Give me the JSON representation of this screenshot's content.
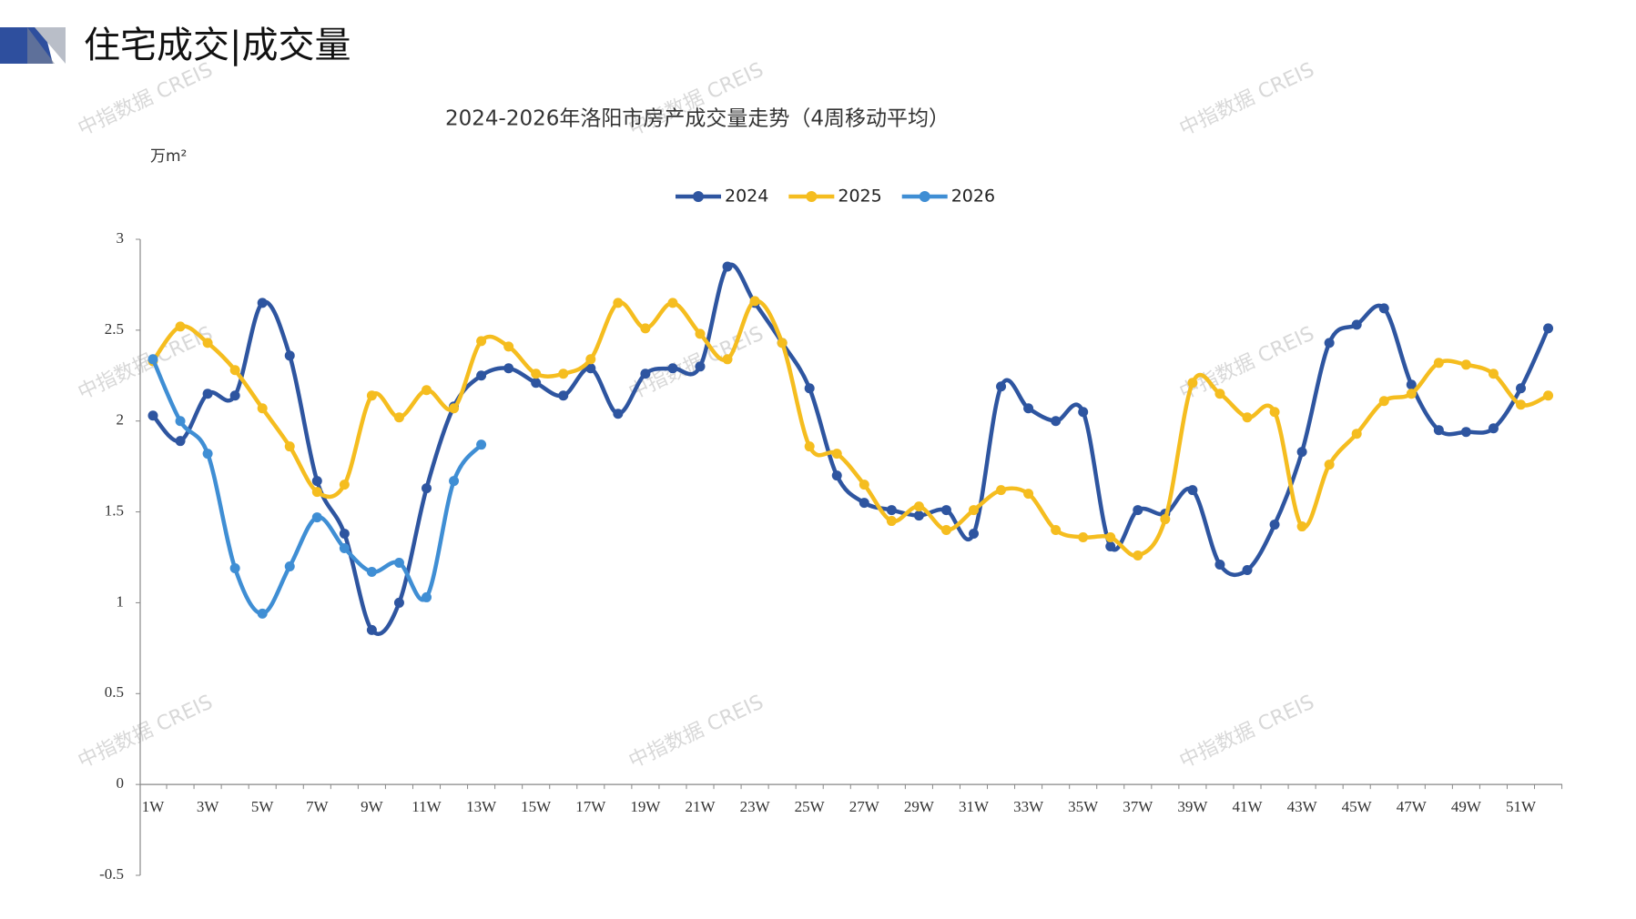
{
  "header": "住宅成交|成交量",
  "watermark": "中指数据 CREIS",
  "chart_data": {
    "type": "line",
    "title": "2024-2026年洛阳市房产成交量走势（4周移动平均）",
    "y_label": "万m²",
    "categories": [
      "1W",
      null,
      "3W",
      null,
      "5W",
      null,
      "7W",
      null,
      "9W",
      null,
      "11W",
      null,
      "13W",
      null,
      "15W",
      null,
      "17W",
      null,
      "19W",
      null,
      "21W",
      null,
      "23W",
      null,
      "25W",
      null,
      "27W",
      null,
      "29W",
      null,
      "31W",
      null,
      "33W",
      null,
      "35W",
      null,
      "37W",
      null,
      "39W",
      null,
      "41W",
      null,
      "43W",
      null,
      "45W",
      null,
      "47W",
      null,
      "49W",
      null,
      "51W",
      null
    ],
    "series": [
      {
        "name": "2024",
        "color": "#2e55a0",
        "values": [
          2.03,
          1.89,
          2.15,
          2.14,
          2.65,
          2.36,
          1.67,
          1.38,
          0.85,
          1.0,
          1.63,
          2.08,
          2.25,
          2.29,
          2.21,
          2.14,
          2.29,
          2.04,
          2.26,
          2.29,
          2.3,
          2.85,
          2.65,
          2.43,
          2.18,
          1.7,
          1.55,
          1.51,
          1.48,
          1.51,
          1.38,
          2.19,
          2.07,
          2.0,
          2.05,
          1.31,
          1.51,
          1.49,
          1.62,
          1.21,
          1.18,
          1.43,
          1.83,
          2.43,
          2.53,
          2.62,
          2.2,
          1.95,
          1.94,
          1.96,
          2.18,
          2.51
        ]
      },
      {
        "name": "2025",
        "color": "#f5bd1f",
        "values": [
          2.33,
          2.52,
          2.43,
          2.28,
          2.07,
          1.86,
          1.61,
          1.65,
          2.14,
          2.02,
          2.17,
          2.07,
          2.44,
          2.41,
          2.26,
          2.26,
          2.34,
          2.65,
          2.51,
          2.65,
          2.48,
          2.34,
          2.66,
          2.43,
          1.86,
          1.82,
          1.65,
          1.45,
          1.53,
          1.4,
          1.51,
          1.62,
          1.6,
          1.4,
          1.36,
          1.36,
          1.26,
          1.46,
          2.21,
          2.15,
          2.02,
          2.05,
          1.42,
          1.76,
          1.93,
          2.11,
          2.15,
          2.32,
          2.31,
          2.26,
          2.09,
          2.14
        ]
      },
      {
        "name": "2026",
        "color": "#3f8ed4",
        "values": [
          2.34,
          2.0,
          1.82,
          1.19,
          0.94,
          1.2,
          1.47,
          1.3,
          1.17,
          1.22,
          1.03,
          1.67,
          1.87,
          null,
          null,
          null,
          null,
          null,
          null,
          null,
          null,
          null,
          null,
          null,
          null,
          null,
          null,
          null,
          null,
          null,
          null,
          null,
          null,
          null,
          null,
          null,
          null,
          null,
          null,
          null,
          null,
          null,
          null,
          null,
          null,
          null,
          null,
          null,
          null,
          null,
          null,
          null
        ]
      }
    ],
    "ylim": [
      -0.5,
      3
    ],
    "yticks": [
      -0.5,
      0,
      0.5,
      1,
      1.5,
      2,
      2.5,
      3
    ],
    "legend": "top"
  }
}
